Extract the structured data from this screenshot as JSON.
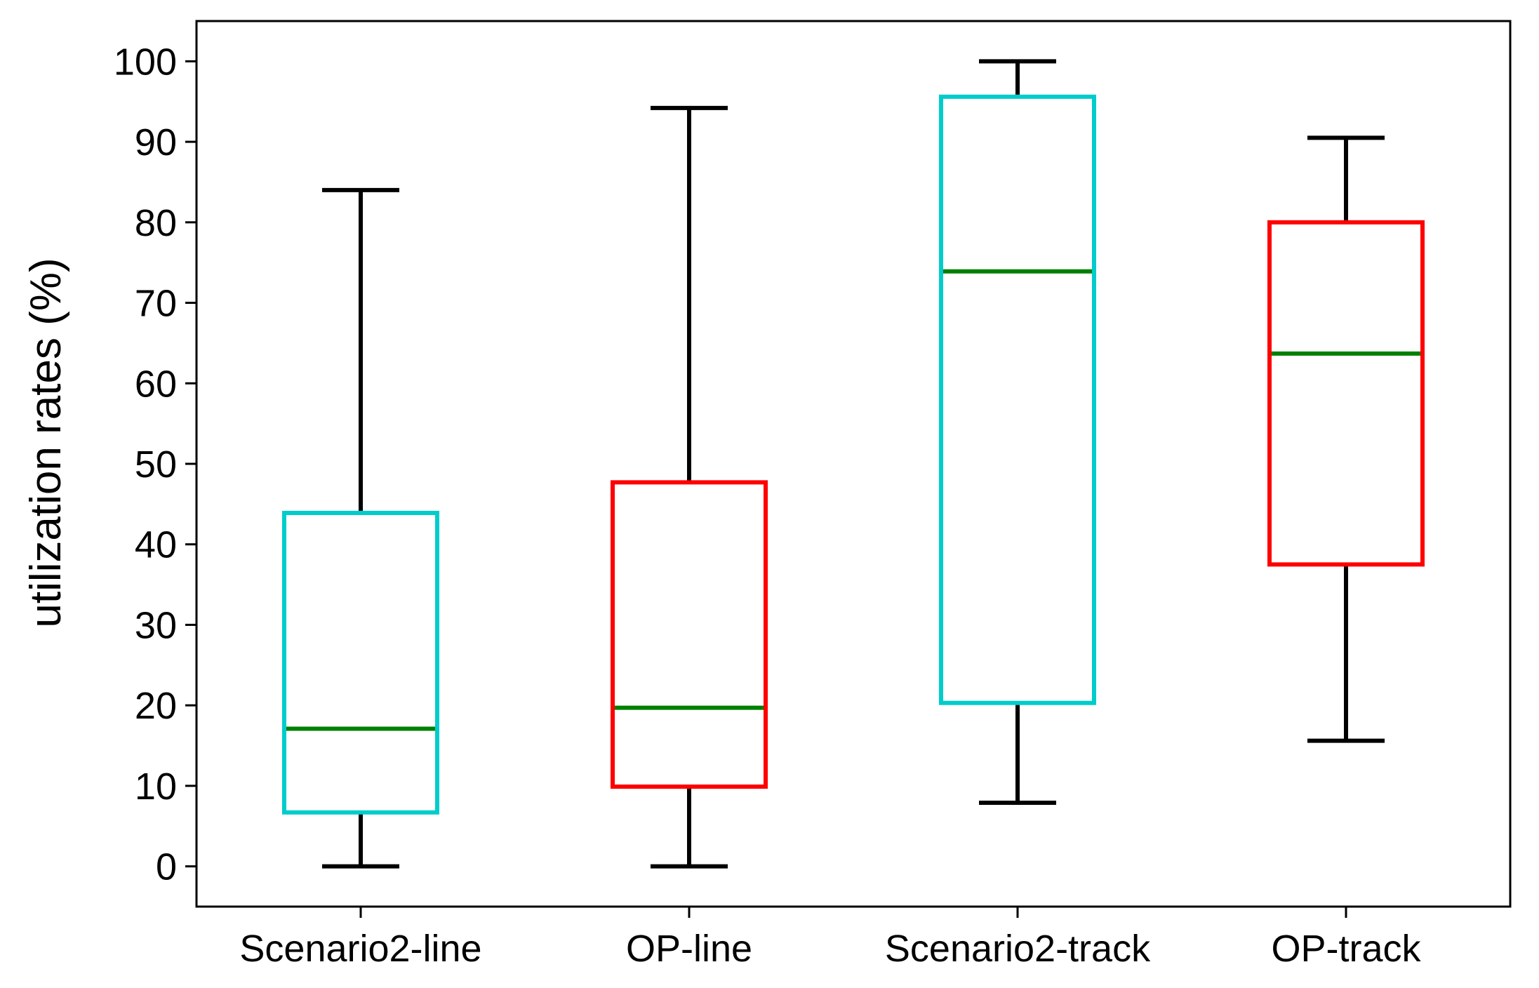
{
  "chart_data": {
    "type": "box",
    "title": "",
    "xlabel": "",
    "ylabel": "utilization rates (%)",
    "ylim": [
      -5,
      105
    ],
    "yticks": [
      0,
      10,
      20,
      30,
      40,
      50,
      60,
      70,
      80,
      90,
      100
    ],
    "ytick_labels": [
      "0",
      "10",
      "20",
      "30",
      "40",
      "50",
      "60",
      "70",
      "80",
      "90",
      "100"
    ],
    "grid": false,
    "legend": "none",
    "categories": [
      "Scenario2-line",
      "OP-line",
      "Scenario2-track",
      "OP-track"
    ],
    "boxes": [
      {
        "category": "Scenario2-line",
        "whisker_low": 0,
        "q1": 6.7,
        "median": 17.1,
        "q3": 43.9,
        "whisker_high": 84,
        "box_color": "#00cccc"
      },
      {
        "category": "OP-line",
        "whisker_low": 0,
        "q1": 9.9,
        "median": 19.7,
        "q3": 47.7,
        "whisker_high": 94.2,
        "box_color": "#ff0000"
      },
      {
        "category": "Scenario2-track",
        "whisker_low": 7.9,
        "q1": 20.3,
        "median": 73.9,
        "q3": 95.6,
        "whisker_high": 100,
        "box_color": "#00cccc"
      },
      {
        "category": "OP-track",
        "whisker_low": 15.6,
        "q1": 37.5,
        "median": 63.7,
        "q3": 80.0,
        "whisker_high": 90.5,
        "box_color": "#ff0000"
      }
    ],
    "colors": {
      "median": "#008000",
      "whisker": "#000000",
      "axes": "#000000"
    }
  }
}
